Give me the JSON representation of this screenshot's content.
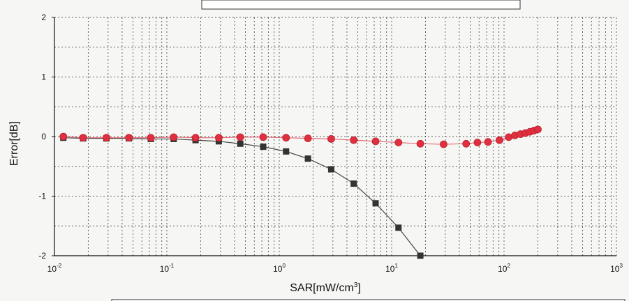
{
  "chart_data": {
    "type": "line",
    "xscale": "log",
    "xlim": [
      0.01,
      1000
    ],
    "ylim": [
      -2,
      2
    ],
    "xlabel": "SAR[mW/cm³]",
    "ylabel": "Error[dB]",
    "grid": true,
    "x_ticks": [
      {
        "base": "10",
        "exp": "-2"
      },
      {
        "base": "10",
        "exp": "-1"
      },
      {
        "base": "10",
        "exp": "0"
      },
      {
        "base": "10",
        "exp": "1"
      },
      {
        "base": "10",
        "exp": "2"
      },
      {
        "base": "10",
        "exp": "3"
      }
    ],
    "y_ticks": [
      "2",
      "1",
      "0",
      "-1",
      "-2"
    ],
    "series": [
      {
        "color": "#333333",
        "marker": "square",
        "x": [
          0.012,
          0.018,
          0.029,
          0.046,
          0.072,
          0.115,
          0.18,
          0.29,
          0.45,
          0.72,
          1.15,
          1.8,
          2.9,
          4.6,
          7.2,
          11.5,
          18
        ],
        "y": [
          -0.02,
          -0.03,
          -0.03,
          -0.03,
          -0.04,
          -0.04,
          -0.06,
          -0.08,
          -0.12,
          -0.17,
          -0.25,
          -0.37,
          -0.55,
          -0.79,
          -1.12,
          -1.53,
          -2.0
        ]
      },
      {
        "color": "#e03040",
        "marker": "circle",
        "x": [
          0.012,
          0.018,
          0.029,
          0.046,
          0.072,
          0.115,
          0.18,
          0.29,
          0.45,
          0.72,
          1.15,
          1.8,
          2.9,
          4.6,
          7.2,
          11.5,
          18,
          29,
          46,
          58,
          72,
          91,
          110,
          125,
          140,
          155,
          170,
          185,
          200
        ],
        "y": [
          0.0,
          -0.02,
          -0.02,
          -0.02,
          -0.02,
          -0.01,
          -0.02,
          -0.02,
          -0.01,
          -0.01,
          -0.02,
          -0.03,
          -0.04,
          -0.06,
          -0.08,
          -0.1,
          -0.12,
          -0.13,
          -0.12,
          -0.1,
          -0.09,
          -0.06,
          -0.01,
          0.02,
          0.04,
          0.06,
          0.08,
          0.1,
          0.12
        ]
      }
    ]
  }
}
